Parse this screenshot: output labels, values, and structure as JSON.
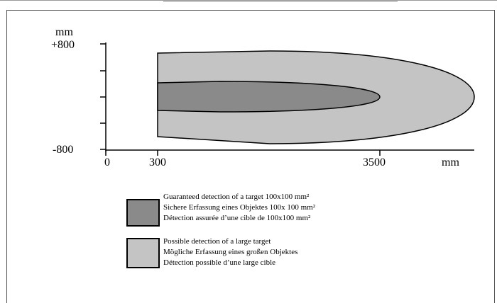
{
  "axis": {
    "y_unit": "mm",
    "y_top": "+800",
    "y_bottom": "-800",
    "x_ticks": [
      "0",
      "300",
      "3500"
    ],
    "x_unit": "mm"
  },
  "colors": {
    "guaranteed_fill": "#8a8a8a",
    "possible_fill": "#c4c4c4",
    "stroke": "#000000"
  },
  "legend": {
    "guaranteed": [
      "Guaranteed detection of a target 100x100 mm²",
      "Sichere Erfassung eines Objektes 100x 100 mm²",
      "Détection assurée d’une cible de 100x100 mm²"
    ],
    "possible": [
      "Possible detection of a large target",
      "Mögliche Erfassung eines  großen Objektes",
      "Détection possible d’une large cible"
    ]
  }
}
